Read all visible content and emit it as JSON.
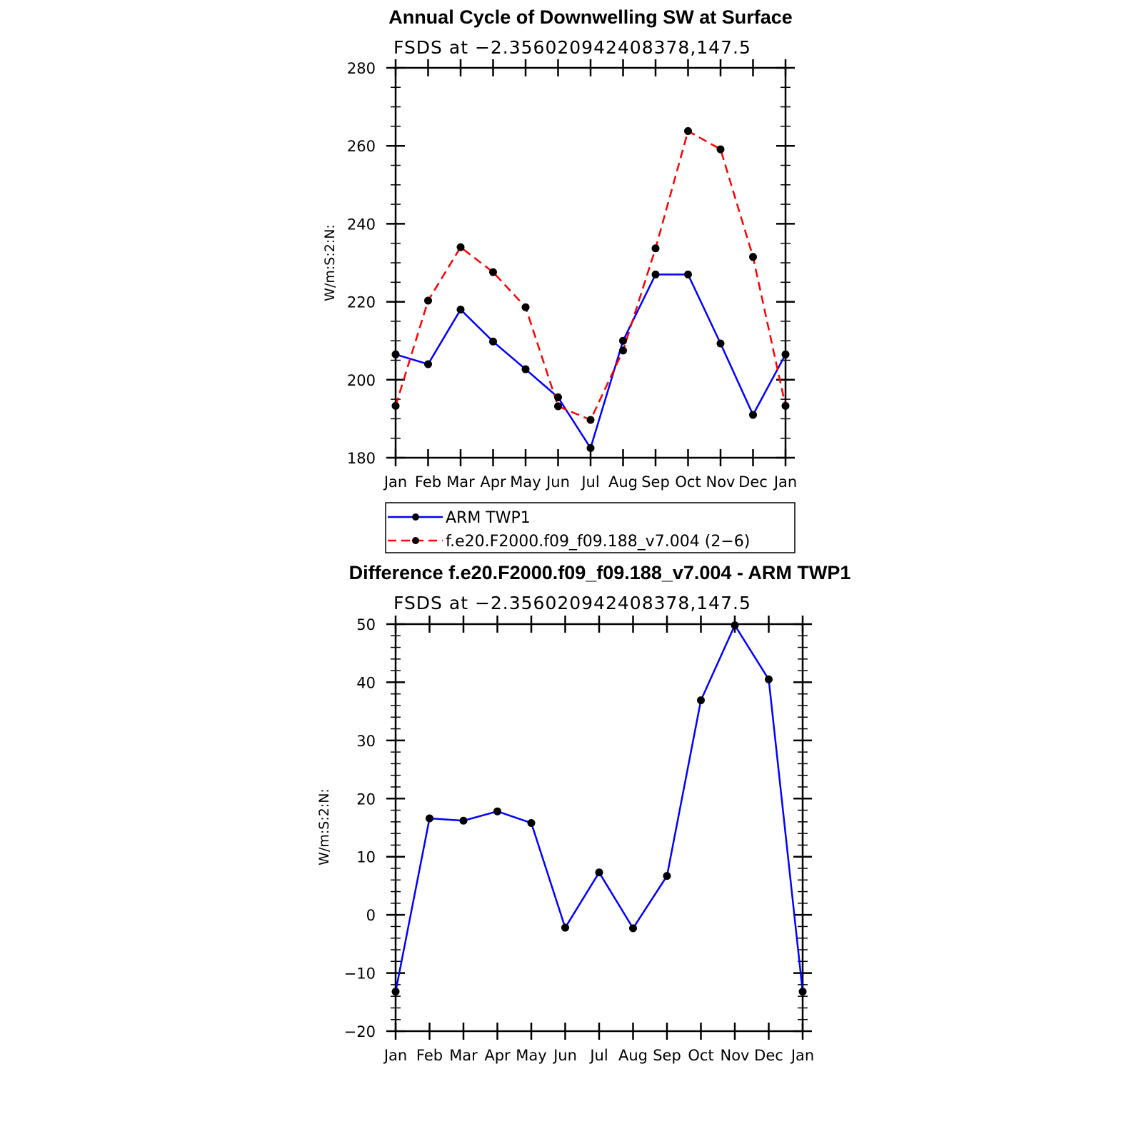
{
  "chart_data": [
    {
      "type": "line",
      "title": "Annual Cycle of Downwelling SW at Surface",
      "subtitle": "FSDS at −2.356020942408378,147.5",
      "ylabel": "W/m:S:2:N:",
      "xlabel": "",
      "ylim": [
        180,
        280
      ],
      "yticks": [
        "180",
        "200",
        "220",
        "240",
        "260",
        "280"
      ],
      "categories": [
        "Jan",
        "Feb",
        "Mar",
        "Apr",
        "May",
        "Jun",
        "Jul",
        "Aug",
        "Sep",
        "Oct",
        "Nov",
        "Dec",
        "Jan"
      ],
      "grid": false,
      "legend_position": "below",
      "series": [
        {
          "name": "ARM TWP1",
          "color": "#0000ff",
          "dash": "solid",
          "values": [
            206.5,
            204.0,
            218.0,
            209.8,
            202.7,
            195.5,
            182.5,
            210.0,
            227.0,
            227.0,
            209.3,
            191.0,
            206.5
          ]
        },
        {
          "name": "f.e20.F2000.f09_f09.188_v7.004 (2−6)",
          "color": "#ff0000",
          "dash": "dashed",
          "values": [
            193.3,
            220.3,
            234.0,
            227.6,
            218.6,
            193.2,
            189.7,
            207.5,
            233.7,
            263.8,
            259.1,
            231.5,
            193.3
          ]
        }
      ]
    },
    {
      "type": "line",
      "title": "Difference f.e20.F2000.f09_f09.188_v7.004 - ARM TWP1",
      "subtitle": "FSDS at −2.356020942408378,147.5",
      "ylabel": "W/m:S:2:N:",
      "xlabel": "",
      "ylim": [
        -20,
        50
      ],
      "yticks": [
        "−20",
        "−10",
        "0",
        "10",
        "20",
        "30",
        "40",
        "50"
      ],
      "categories": [
        "Jan",
        "Feb",
        "Mar",
        "Apr",
        "May",
        "Jun",
        "Jul",
        "Aug",
        "Sep",
        "Oct",
        "Nov",
        "Dec",
        "Jan"
      ],
      "grid": false,
      "series": [
        {
          "color": "#0000ff",
          "dash": "solid",
          "values": [
            -13.2,
            16.6,
            16.2,
            17.8,
            15.8,
            -2.2,
            7.3,
            -2.3,
            6.7,
            36.9,
            49.8,
            40.5,
            -13.2
          ]
        }
      ]
    }
  ]
}
